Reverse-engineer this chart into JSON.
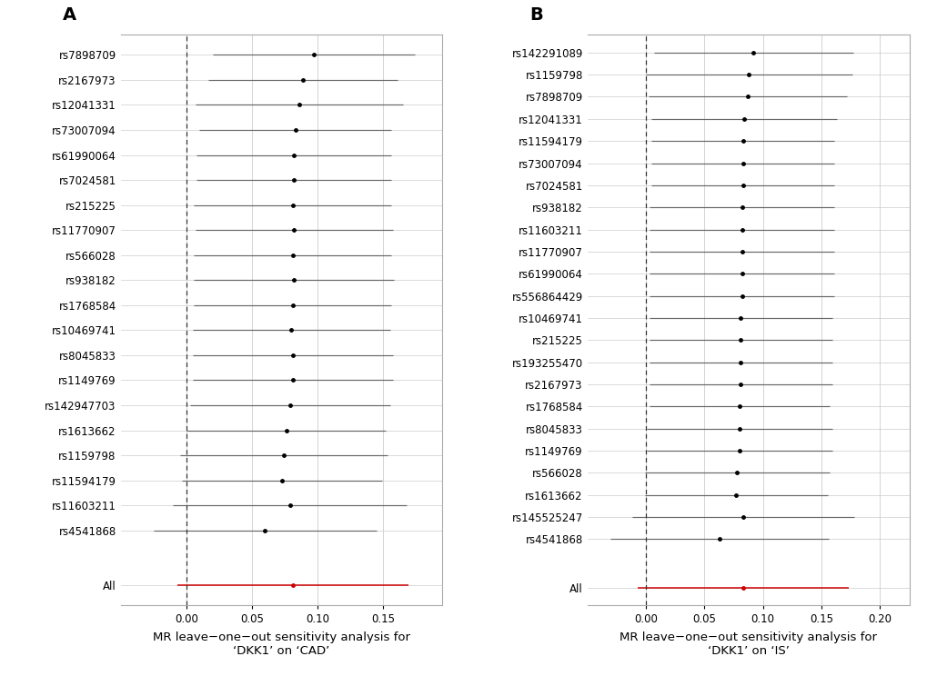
{
  "panel_A": {
    "title": "A",
    "xlabel": "MR leave−one−out sensitivity analysis for\n‘DKK1’ on ‘CAD’",
    "snps": [
      "rs7898709",
      "rs2167973",
      "rs12041331",
      "rs73007094",
      "rs61990064",
      "rs7024581",
      "rs215225",
      "rs11770907",
      "rs566028",
      "rs938182",
      "rs1768584",
      "rs10469741",
      "rs8045833",
      "rs1149769",
      "rs142947703",
      "rs1613662",
      "rs1159798",
      "rs11594179",
      "rs11603211",
      "rs4541868"
    ],
    "estimates": [
      0.097,
      0.089,
      0.086,
      0.083,
      0.082,
      0.082,
      0.081,
      0.082,
      0.081,
      0.082,
      0.081,
      0.08,
      0.081,
      0.081,
      0.079,
      0.076,
      0.074,
      0.073,
      0.079,
      0.06
    ],
    "ci_low": [
      0.02,
      0.017,
      0.007,
      0.01,
      0.008,
      0.008,
      0.006,
      0.007,
      0.006,
      0.006,
      0.006,
      0.005,
      0.005,
      0.005,
      0.003,
      0.0,
      -0.005,
      -0.003,
      -0.01,
      -0.025
    ],
    "ci_high": [
      0.174,
      0.161,
      0.165,
      0.156,
      0.156,
      0.156,
      0.156,
      0.157,
      0.156,
      0.158,
      0.156,
      0.155,
      0.157,
      0.157,
      0.155,
      0.152,
      0.153,
      0.149,
      0.168,
      0.145
    ],
    "all_estimate": 0.081,
    "all_ci_low": -0.007,
    "all_ci_high": 0.169,
    "xlim": [
      -0.05,
      0.195
    ],
    "xticks": [
      0.0,
      0.05,
      0.1,
      0.15
    ],
    "xticklabels": [
      "0.00",
      "0.05",
      "0.10",
      "0.15"
    ]
  },
  "panel_B": {
    "title": "B",
    "xlabel": "MR leave−one−out sensitivity analysis for\n‘DKK1’ on ‘IS’",
    "snps": [
      "rs142291089",
      "rs1159798",
      "rs7898709",
      "rs12041331",
      "rs11594179",
      "rs73007094",
      "rs7024581",
      "rs938182",
      "rs11603211",
      "rs11770907",
      "rs61990064",
      "rs556864429",
      "rs10469741",
      "rs215225",
      "rs193255470",
      "rs2167973",
      "rs1768584",
      "rs8045833",
      "rs1149769",
      "rs566028",
      "rs1613662",
      "rs145525247",
      "rs4541868"
    ],
    "estimates": [
      0.092,
      0.088,
      0.087,
      0.084,
      0.083,
      0.083,
      0.083,
      0.082,
      0.082,
      0.082,
      0.082,
      0.082,
      0.081,
      0.081,
      0.081,
      0.081,
      0.08,
      0.08,
      0.08,
      0.078,
      0.077,
      0.083,
      0.063
    ],
    "ci_low": [
      0.007,
      0.0,
      0.002,
      0.005,
      0.005,
      0.005,
      0.005,
      0.003,
      0.003,
      0.003,
      0.003,
      0.003,
      0.003,
      0.003,
      0.003,
      0.003,
      0.003,
      0.001,
      0.001,
      -0.001,
      -0.001,
      -0.012,
      -0.03
    ],
    "ci_high": [
      0.177,
      0.176,
      0.172,
      0.163,
      0.161,
      0.161,
      0.161,
      0.161,
      0.161,
      0.161,
      0.161,
      0.161,
      0.159,
      0.159,
      0.159,
      0.159,
      0.157,
      0.159,
      0.159,
      0.157,
      0.155,
      0.178,
      0.156
    ],
    "all_estimate": 0.083,
    "all_ci_low": -0.007,
    "all_ci_high": 0.173,
    "xlim": [
      -0.05,
      0.225
    ],
    "xticks": [
      0.0,
      0.05,
      0.1,
      0.15,
      0.2
    ],
    "xticklabels": [
      "0.00",
      "0.05",
      "0.10",
      "0.15",
      "0.20"
    ]
  },
  "dot_color": "#000000",
  "line_color": "#666666",
  "dashed_color": "#333333",
  "all_color": "#cc0000",
  "bg_color": "#ffffff",
  "grid_color": "#cccccc",
  "fontsize_snp": 8.5,
  "fontsize_tick": 8.5,
  "fontsize_xlabel": 9.5,
  "fontsize_panel": 14
}
